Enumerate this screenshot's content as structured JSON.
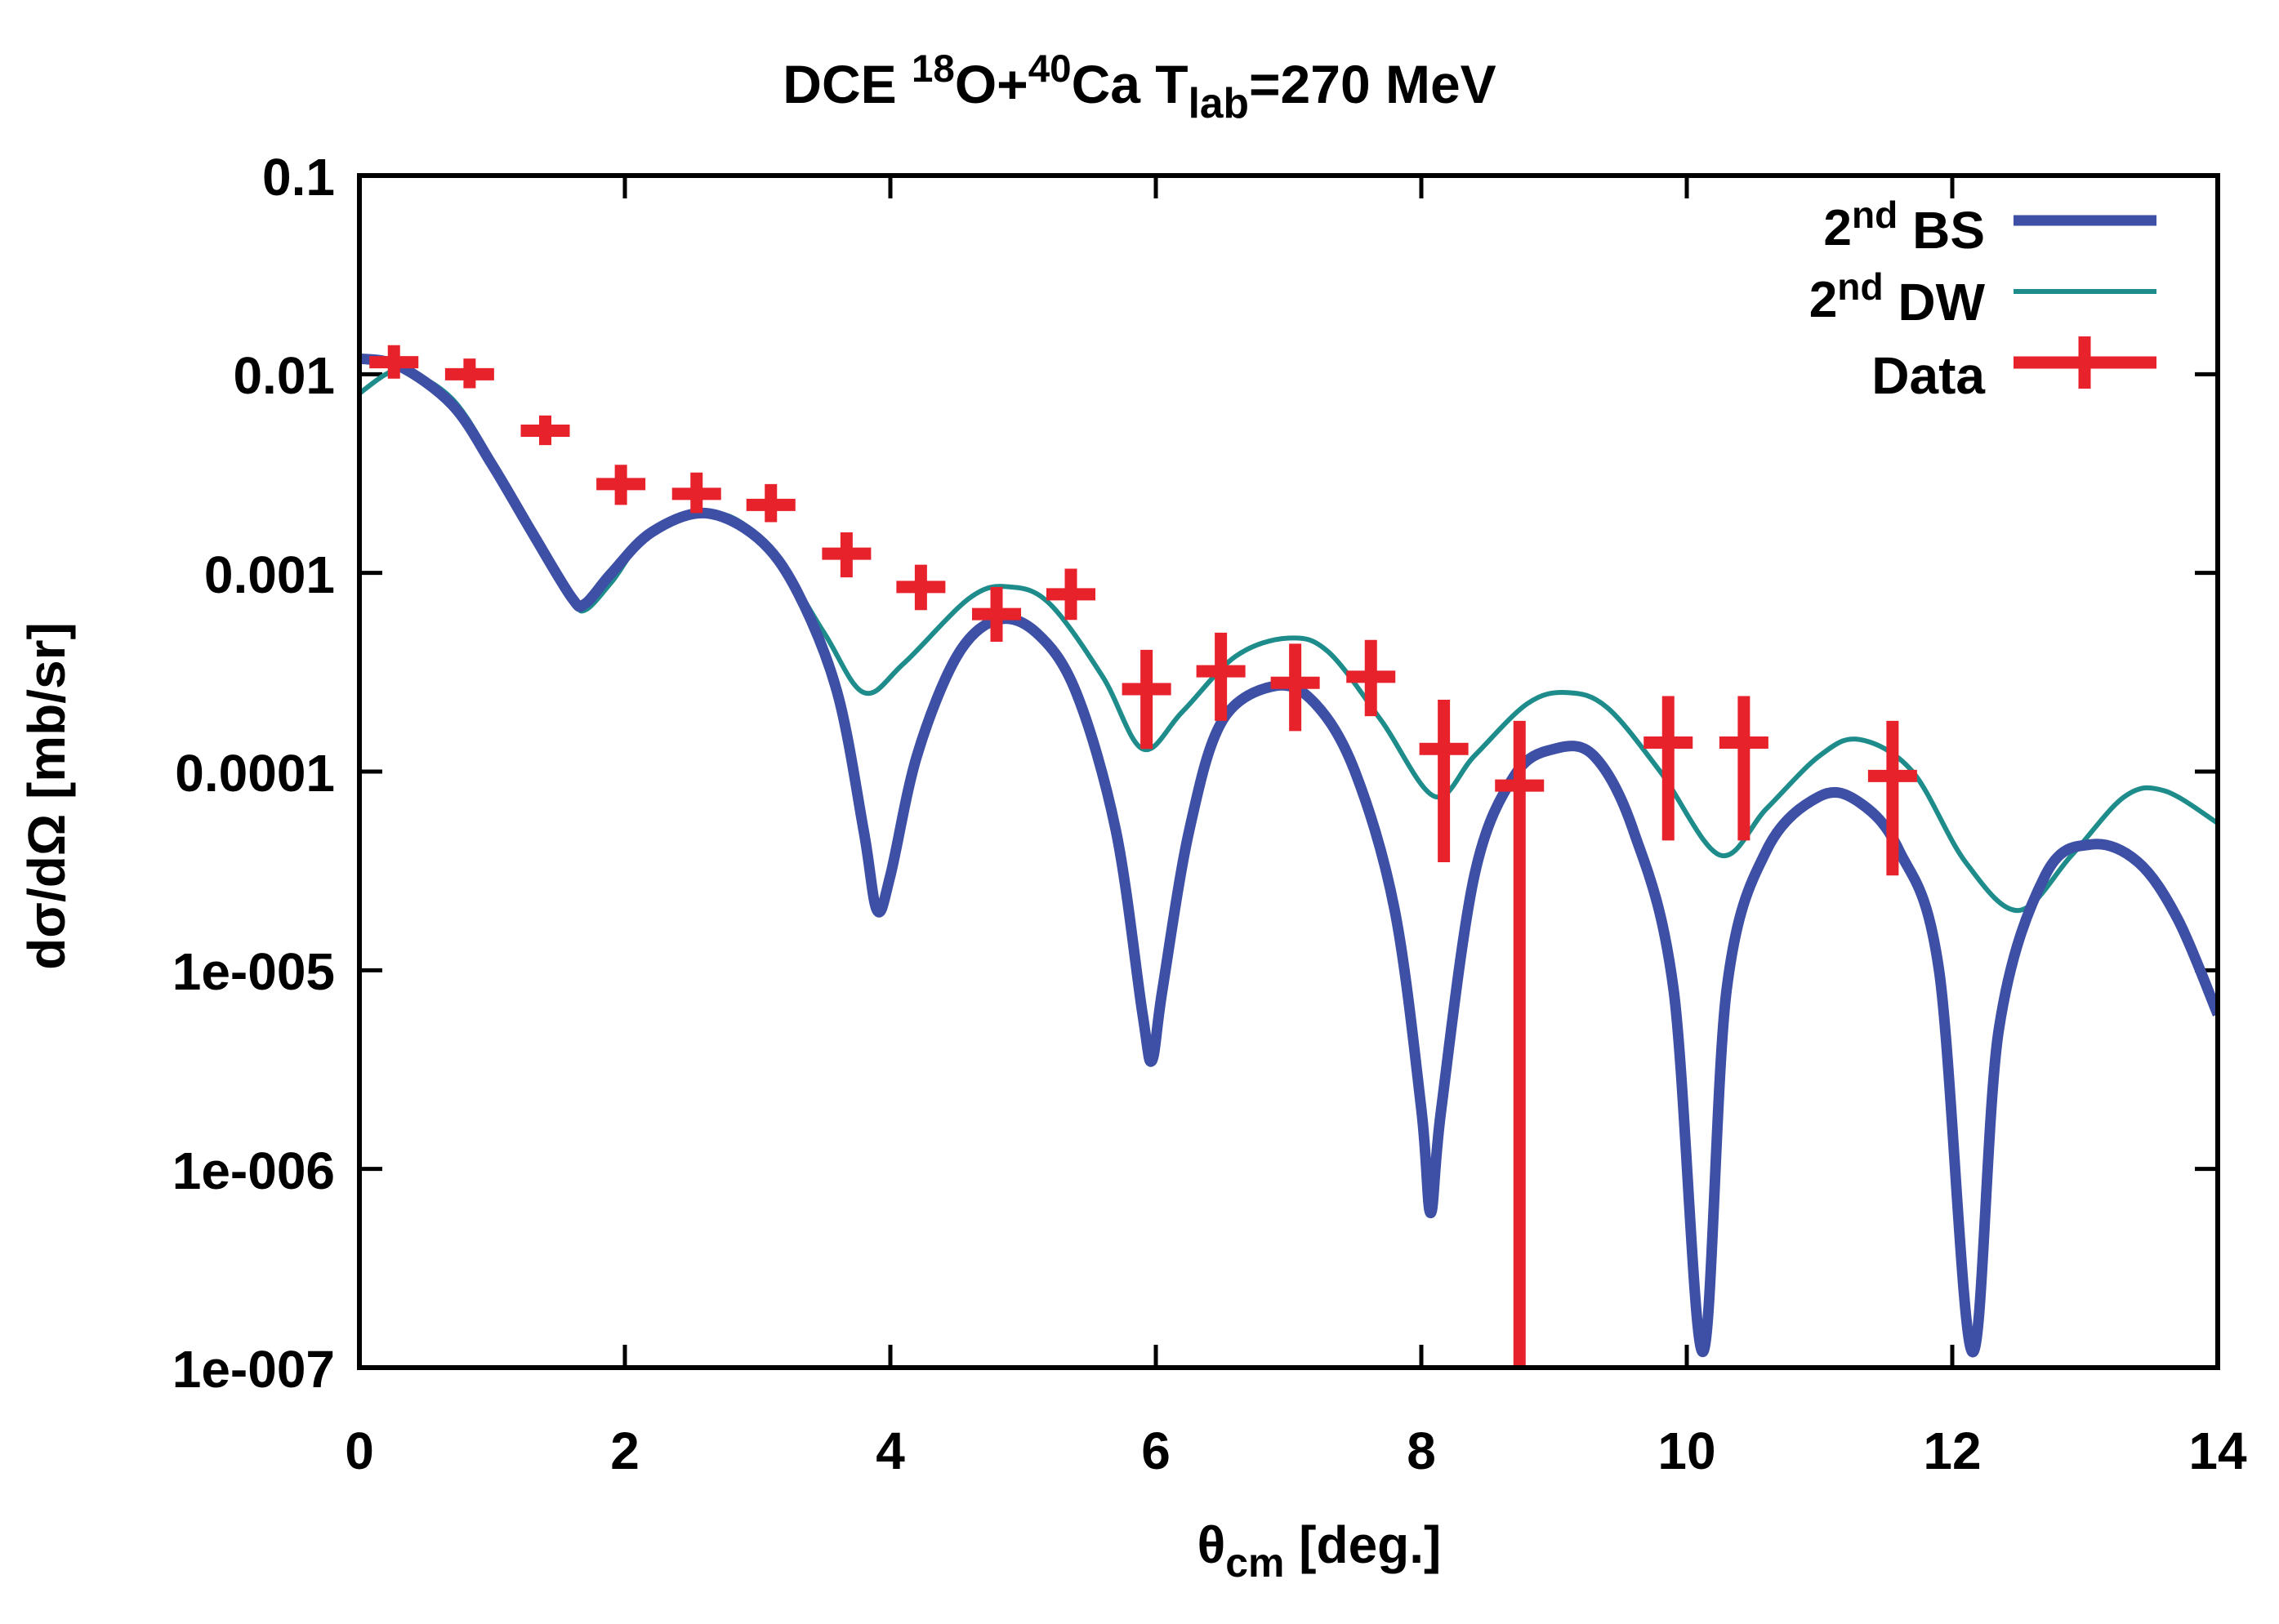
{
  "chart_data": {
    "type": "line",
    "title": {
      "main": "DCE ",
      "sup1": "18",
      "mid1": "O+",
      "sup2": "40",
      "mid2": "Ca T",
      "sub": "lab",
      "tail": "=270 MeV"
    },
    "xlabel": {
      "symbol": "θ",
      "sub": "cm",
      "text": " [deg.]"
    },
    "ylabel": "dσ/dΩ [mb/sr]",
    "xlim": [
      0,
      14
    ],
    "ylim": [
      1e-07,
      0.1
    ],
    "yscale": "log",
    "x_tick_labels": [
      "0",
      "2",
      "4",
      "6",
      "8",
      "10",
      "12",
      "14"
    ],
    "y_tick_labels": [
      "0.1",
      "0.01",
      "0.001",
      "0.0001",
      "1e-005",
      "1e-006",
      "1e-007"
    ],
    "legend_position": "top-right",
    "series": [
      {
        "name": "BS",
        "legend_sup": "2nd",
        "color": "#3e4fa6",
        "style": "thick-line",
        "points": [
          [
            0.0,
            0.012
          ],
          [
            0.3,
            0.011
          ],
          [
            0.7,
            0.007
          ],
          [
            1.0,
            0.0035
          ],
          [
            1.3,
            0.0016
          ],
          [
            1.6,
            0.00075
          ],
          [
            1.7,
            0.0007
          ],
          [
            1.9,
            0.001
          ],
          [
            2.2,
            0.0016
          ],
          [
            2.6,
            0.002
          ],
          [
            3.0,
            0.0015
          ],
          [
            3.3,
            0.0008
          ],
          [
            3.6,
            0.00025
          ],
          [
            3.8,
            5e-05
          ],
          [
            3.9,
            2e-05
          ],
          [
            4.0,
            3e-05
          ],
          [
            4.2,
            0.00012
          ],
          [
            4.5,
            0.00038
          ],
          [
            4.8,
            0.00058
          ],
          [
            5.1,
            0.0005
          ],
          [
            5.4,
            0.00025
          ],
          [
            5.7,
            5e-05
          ],
          [
            5.9,
            6e-06
          ],
          [
            5.97,
            3.5e-06
          ],
          [
            6.05,
            8e-06
          ],
          [
            6.25,
            5e-05
          ],
          [
            6.5,
            0.00018
          ],
          [
            6.9,
            0.00027
          ],
          [
            7.2,
            0.00022
          ],
          [
            7.5,
            0.0001
          ],
          [
            7.8,
            2e-05
          ],
          [
            8.0,
            2e-06
          ],
          [
            8.07,
            6e-07
          ],
          [
            8.15,
            2e-06
          ],
          [
            8.4,
            3e-05
          ],
          [
            8.7,
            9.5e-05
          ],
          [
            9.0,
            0.00013
          ],
          [
            9.3,
            0.00012
          ],
          [
            9.6,
            5e-05
          ],
          [
            9.9,
            8e-06
          ],
          [
            10.12,
            1.2e-07
          ],
          [
            10.3,
            8e-06
          ],
          [
            10.6,
            4e-05
          ],
          [
            11.0,
            7.5e-05
          ],
          [
            11.3,
            7e-05
          ],
          [
            11.6,
            4e-05
          ],
          [
            11.9,
            1e-05
          ],
          [
            12.15,
            1.2e-07
          ],
          [
            12.35,
            5e-06
          ],
          [
            12.7,
            3e-05
          ],
          [
            13.05,
            4.3e-05
          ],
          [
            13.4,
            3.5e-05
          ],
          [
            13.7,
            1.8e-05
          ],
          [
            14.0,
            6e-06
          ]
        ]
      },
      {
        "name": "DW",
        "legend_sup": "2nd",
        "color": "#1f8c8c",
        "style": "thin-line",
        "points": [
          [
            0.0,
            0.008
          ],
          [
            0.2,
            0.01
          ],
          [
            0.35,
            0.0105
          ],
          [
            0.7,
            0.0075
          ],
          [
            1.0,
            0.0037
          ],
          [
            1.3,
            0.0016
          ],
          [
            1.6,
            0.00075
          ],
          [
            1.7,
            0.00065
          ],
          [
            1.9,
            0.0009
          ],
          [
            2.2,
            0.0016
          ],
          [
            2.7,
            0.002
          ],
          [
            3.1,
            0.0013
          ],
          [
            3.5,
            0.0005
          ],
          [
            3.8,
            0.00025
          ],
          [
            4.1,
            0.00035
          ],
          [
            4.6,
            0.00075
          ],
          [
            4.9,
            0.00085
          ],
          [
            5.2,
            0.0007
          ],
          [
            5.6,
            0.0003
          ],
          [
            5.9,
            0.00013
          ],
          [
            6.2,
            0.0002
          ],
          [
            6.6,
            0.00038
          ],
          [
            7.0,
            0.00047
          ],
          [
            7.3,
            0.0004
          ],
          [
            7.7,
            0.00018
          ],
          [
            8.1,
            7.5e-05
          ],
          [
            8.4,
            0.00012
          ],
          [
            8.8,
            0.00022
          ],
          [
            9.1,
            0.00025
          ],
          [
            9.4,
            0.00021
          ],
          [
            9.8,
            0.0001
          ],
          [
            10.25,
            3.8e-05
          ],
          [
            10.6,
            6.5e-05
          ],
          [
            11.0,
            0.00012
          ],
          [
            11.3,
            0.000145
          ],
          [
            11.7,
            0.0001
          ],
          [
            12.1,
            3.5e-05
          ],
          [
            12.5,
            2e-05
          ],
          [
            12.9,
            3.8e-05
          ],
          [
            13.3,
            7.5e-05
          ],
          [
            13.6,
            8e-05
          ],
          [
            14.0,
            5.5e-05
          ]
        ]
      },
      {
        "name": "Data",
        "color": "#e8222b",
        "style": "points-with-errorbars",
        "points": [
          {
            "x": 0.26,
            "y": 0.0115,
            "ylo": 0.0095,
            "yhi": 0.014
          },
          {
            "x": 0.83,
            "y": 0.01,
            "ylo": 0.0085,
            "yhi": 0.012
          },
          {
            "x": 1.4,
            "y": 0.0052,
            "ylo": 0.0044,
            "yhi": 0.0062
          },
          {
            "x": 1.97,
            "y": 0.0028,
            "ylo": 0.0022,
            "yhi": 0.0035
          },
          {
            "x": 2.54,
            "y": 0.0025,
            "ylo": 0.002,
            "yhi": 0.0032
          },
          {
            "x": 3.1,
            "y": 0.0022,
            "ylo": 0.0018,
            "yhi": 0.0028
          },
          {
            "x": 3.67,
            "y": 0.00125,
            "ylo": 0.00095,
            "yhi": 0.0016
          },
          {
            "x": 4.23,
            "y": 0.00085,
            "ylo": 0.00065,
            "yhi": 0.0011
          },
          {
            "x": 4.8,
            "y": 0.00062,
            "ylo": 0.00045,
            "yhi": 0.00085
          },
          {
            "x": 5.36,
            "y": 0.00078,
            "ylo": 0.00058,
            "yhi": 0.00105
          },
          {
            "x": 5.93,
            "y": 0.00026,
            "ylo": 0.00013,
            "yhi": 0.00041
          },
          {
            "x": 6.49,
            "y": 0.00032,
            "ylo": 0.00018,
            "yhi": 0.0005
          },
          {
            "x": 7.05,
            "y": 0.00028,
            "ylo": 0.00016,
            "yhi": 0.00044
          },
          {
            "x": 7.62,
            "y": 0.0003,
            "ylo": 0.00019,
            "yhi": 0.00046
          },
          {
            "x": 8.17,
            "y": 0.00013,
            "ylo": 3.5e-05,
            "yhi": 0.00023
          },
          {
            "x": 8.74,
            "y": 8.5e-05,
            "ylo": 1e-07,
            "yhi": 0.00018
          },
          {
            "x": 9.86,
            "y": 0.00014,
            "ylo": 4.5e-05,
            "yhi": 0.00024
          },
          {
            "x": 10.43,
            "y": 0.00014,
            "ylo": 4.5e-05,
            "yhi": 0.00024
          },
          {
            "x": 11.55,
            "y": 9.5e-05,
            "ylo": 3e-05,
            "yhi": 0.00018
          }
        ]
      }
    ]
  }
}
